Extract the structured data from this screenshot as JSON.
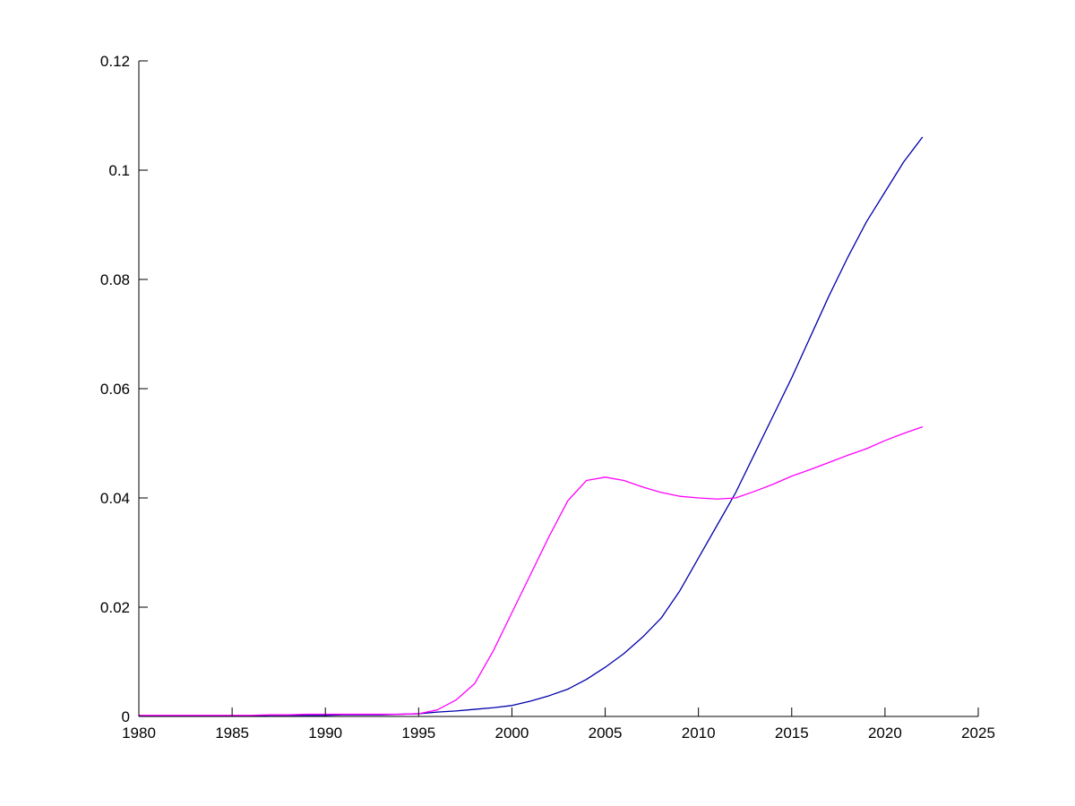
{
  "figure": {
    "background": "#ffffff"
  },
  "chart_data": {
    "type": "line",
    "title": "",
    "xlabel": "",
    "ylabel": "",
    "xlim": [
      1980,
      2025
    ],
    "ylim": [
      0,
      0.12
    ],
    "xticks": [
      1980,
      1985,
      1990,
      1995,
      2000,
      2005,
      2010,
      2015,
      2020,
      2025
    ],
    "xtick_labels": [
      "1980",
      "1985",
      "1990",
      "1995",
      "2000",
      "2005",
      "2010",
      "2015",
      "2020",
      "2025"
    ],
    "yticks": [
      0,
      0.02,
      0.04,
      0.06,
      0.08,
      0.1,
      0.12
    ],
    "ytick_labels": [
      "0",
      "0.02",
      "0.04",
      "0.06",
      "0.08",
      "0.1",
      "0.12"
    ],
    "grid": false,
    "legend": "none",
    "axis_color": "#000000",
    "x": [
      1980,
      1981,
      1982,
      1983,
      1984,
      1985,
      1986,
      1987,
      1988,
      1989,
      1990,
      1991,
      1992,
      1993,
      1994,
      1995,
      1996,
      1997,
      1998,
      1999,
      2000,
      2001,
      2002,
      2003,
      2004,
      2005,
      2006,
      2007,
      2008,
      2009,
      2010,
      2011,
      2012,
      2013,
      2014,
      2015,
      2016,
      2017,
      2018,
      2019,
      2020,
      2021,
      2022
    ],
    "series": [
      {
        "name": "blue-series",
        "color": "#0000AA",
        "values": [
          0.0001,
          0.0001,
          0.0001,
          0.0001,
          0.0001,
          0.0001,
          0.0001,
          0.0002,
          0.0002,
          0.0002,
          0.0002,
          0.0003,
          0.0003,
          0.0003,
          0.0004,
          0.0005,
          0.0008,
          0.001,
          0.0013,
          0.0016,
          0.002,
          0.0028,
          0.0038,
          0.005,
          0.0068,
          0.009,
          0.0115,
          0.0145,
          0.018,
          0.023,
          0.029,
          0.035,
          0.041,
          0.048,
          0.055,
          0.062,
          0.0695,
          0.077,
          0.084,
          0.0905,
          0.096,
          0.1015,
          0.106
        ]
      },
      {
        "name": "magenta-series",
        "color": "#FF00FF",
        "values": [
          0.0002,
          0.0002,
          0.0002,
          0.0002,
          0.0002,
          0.0002,
          0.0002,
          0.0003,
          0.0003,
          0.0004,
          0.0004,
          0.0004,
          0.0004,
          0.0004,
          0.0004,
          0.0005,
          0.0012,
          0.003,
          0.006,
          0.012,
          0.019,
          0.026,
          0.033,
          0.0395,
          0.0432,
          0.0438,
          0.0432,
          0.042,
          0.041,
          0.0403,
          0.04,
          0.0398,
          0.04,
          0.0412,
          0.0425,
          0.044,
          0.0452,
          0.0465,
          0.0478,
          0.049,
          0.0505,
          0.0518,
          0.053
        ]
      }
    ]
  }
}
